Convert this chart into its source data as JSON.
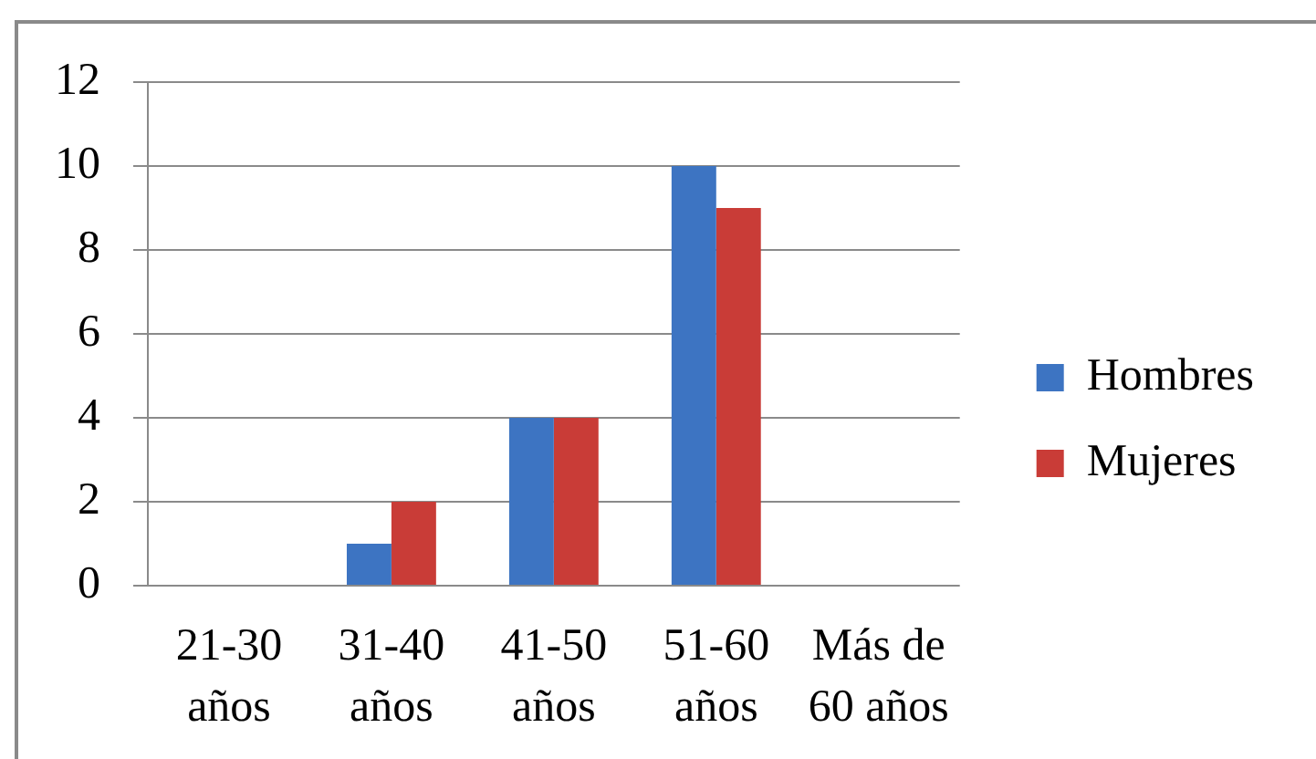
{
  "chart_data": {
    "type": "bar",
    "categories": [
      "21-30 años",
      "31-40 años",
      "41-50 años",
      "51-60 años",
      "Más de 60 años"
    ],
    "series": [
      {
        "name": "Hombres",
        "color": "#3d74c2",
        "values": [
          0,
          1,
          4,
          10,
          0
        ]
      },
      {
        "name": "Mujeres",
        "color": "#c93c37",
        "values": [
          0,
          2,
          4,
          9,
          0
        ]
      }
    ],
    "ylim": [
      0,
      12
    ],
    "yticks": [
      0,
      2,
      4,
      6,
      8,
      10,
      12
    ],
    "grid": "y",
    "legend": "right"
  }
}
